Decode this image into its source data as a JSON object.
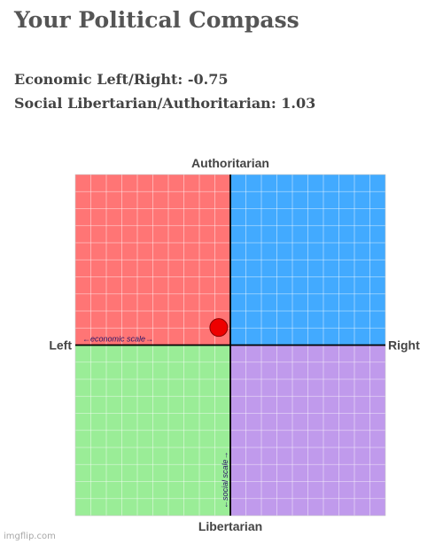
{
  "title": "Your Political Compass",
  "scores": {
    "economic_label": "Economic Left/Right: -0.75",
    "social_label": "Social Libertarian/Authoritarian: 1.03"
  },
  "chart_data": {
    "type": "scatter",
    "title": "",
    "axis_labels": {
      "top": "Authoritarian",
      "bottom": "Libertarian",
      "left": "Left",
      "right": "Right"
    },
    "scale_labels": {
      "economic": "←economic scale→",
      "social": "←social scale→"
    },
    "xlim": [
      -10,
      10
    ],
    "ylim": [
      -10,
      10
    ],
    "grid": true,
    "quadrant_colors": {
      "auth_left": "#ff7575",
      "auth_right": "#42aaff",
      "lib_left": "#9aed97",
      "lib_right": "#c09aec"
    },
    "point": {
      "x": -0.75,
      "y": 1.03,
      "color": "#ee0000"
    }
  },
  "watermark": "imgflip.com"
}
